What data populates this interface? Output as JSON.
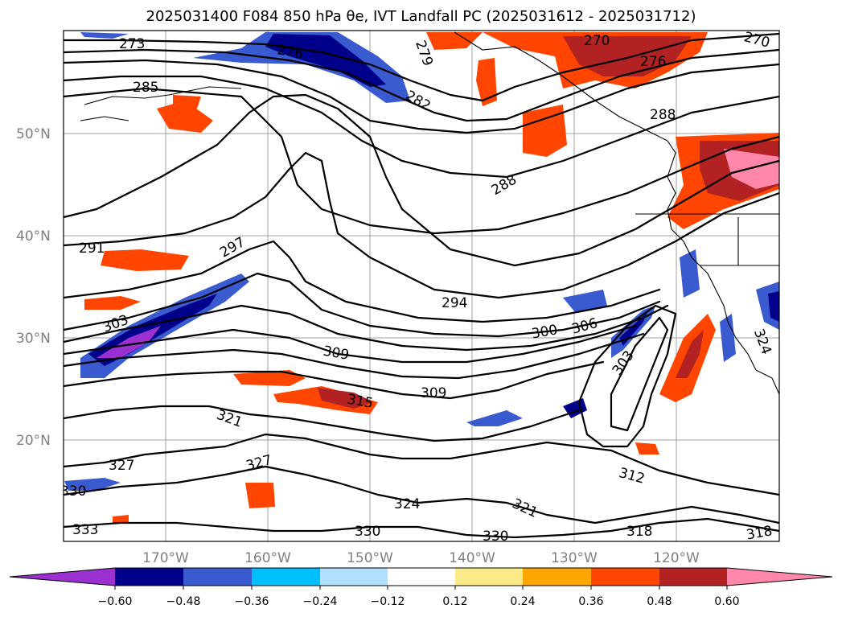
{
  "title": "2025031400 F084 850 hPa θe, IVT Landfall PC (2025031612 - 2025031712)",
  "lat_labels": [
    "50°N",
    "40°N",
    "30°N",
    "20°N"
  ],
  "lon_labels": [
    "170°W",
    "160°W",
    "150°W",
    "140°W",
    "130°W",
    "120°W"
  ],
  "contour_labels": [
    "273",
    "270",
    "276",
    "279",
    "285",
    "282",
    "270",
    "276",
    "288",
    "288",
    "291",
    "297",
    "294",
    "303",
    "300",
    "306",
    "309",
    "303",
    "309",
    "315",
    "324",
    "321",
    "327",
    "330",
    "324",
    "321",
    "327",
    "330",
    "312",
    "318",
    "318",
    "333",
    "330"
  ],
  "colorbar": {
    "ticks": [
      "−0.60",
      "−0.48",
      "−0.36",
      "−0.24",
      "−0.12",
      "0.12",
      "0.24",
      "0.36",
      "0.48",
      "0.60"
    ],
    "colors": [
      "#9b30d0",
      "#00008b",
      "#3a5bd0",
      "#00bfff",
      "#b0e0ff",
      "#ffffff",
      "#fce98a",
      "#ffa500",
      "#ff4500",
      "#b22222",
      "#ff88aa"
    ]
  }
}
